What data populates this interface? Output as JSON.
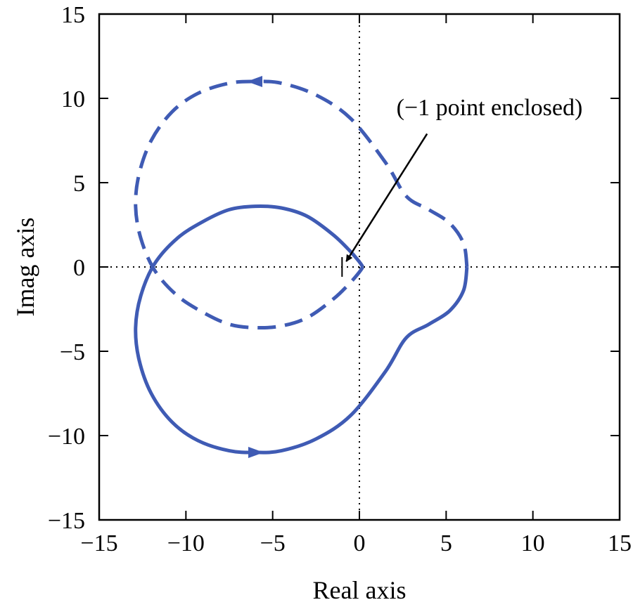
{
  "chart_data": {
    "type": "line",
    "title": "",
    "xlabel": "Real axis",
    "ylabel": "Imag axis",
    "xlim": [
      -15,
      15
    ],
    "ylim": [
      -15,
      15
    ],
    "x_ticks": [
      -15,
      -10,
      -5,
      0,
      5,
      10,
      15
    ],
    "y_ticks": [
      -15,
      -10,
      -5,
      0,
      5,
      10,
      15
    ],
    "x_tick_labels": [
      "−15",
      "−10",
      "−5",
      "0",
      "5",
      "10",
      "15"
    ],
    "y_tick_labels": [
      "−15",
      "−10",
      "−5",
      "0",
      "5",
      "10",
      "15"
    ],
    "grid": false,
    "zero_lines": "dotted",
    "series_color": "#3f5bb4",
    "series": [
      {
        "style": "solid",
        "direction": "arrow at (-6, -11) pointing toward decreasing real part",
        "points": [
          [
            0.2,
            0.0
          ],
          [
            0.0,
            0.3
          ],
          [
            -0.5,
            0.9
          ],
          [
            -1.5,
            1.9
          ],
          [
            -3.0,
            3.0
          ],
          [
            -4.5,
            3.5
          ],
          [
            -6.0,
            3.6
          ],
          [
            -7.5,
            3.4
          ],
          [
            -9.0,
            2.7
          ],
          [
            -10.5,
            1.7
          ],
          [
            -11.8,
            0.2
          ],
          [
            -12.6,
            -1.7
          ],
          [
            -12.9,
            -3.6
          ],
          [
            -12.7,
            -5.5
          ],
          [
            -12.0,
            -7.5
          ],
          [
            -10.8,
            -9.2
          ],
          [
            -9.3,
            -10.3
          ],
          [
            -7.5,
            -10.9
          ],
          [
            -6.0,
            -11.0
          ],
          [
            -4.5,
            -10.9
          ],
          [
            -2.5,
            -10.2
          ],
          [
            -0.5,
            -8.8
          ],
          [
            1.5,
            -6.2
          ],
          [
            2.7,
            -4.2
          ],
          [
            4.0,
            -3.4
          ],
          [
            5.2,
            -2.6
          ],
          [
            6.0,
            -1.4
          ],
          [
            6.2,
            0.0
          ]
        ]
      },
      {
        "style": "dashed",
        "direction": "arrow at (-6, 11) pointing toward increasing real part",
        "points": [
          [
            6.2,
            0.0
          ],
          [
            6.0,
            1.4
          ],
          [
            5.2,
            2.6
          ],
          [
            4.0,
            3.4
          ],
          [
            2.7,
            4.2
          ],
          [
            1.5,
            6.2
          ],
          [
            -0.5,
            8.8
          ],
          [
            -2.5,
            10.2
          ],
          [
            -4.5,
            10.9
          ],
          [
            -6.0,
            11.0
          ],
          [
            -7.5,
            10.9
          ],
          [
            -9.3,
            10.3
          ],
          [
            -10.8,
            9.2
          ],
          [
            -12.0,
            7.5
          ],
          [
            -12.7,
            5.5
          ],
          [
            -12.9,
            3.6
          ],
          [
            -12.6,
            1.7
          ],
          [
            -11.8,
            -0.2
          ],
          [
            -10.5,
            -1.7
          ],
          [
            -9.0,
            -2.7
          ],
          [
            -7.5,
            -3.4
          ],
          [
            -6.0,
            -3.6
          ],
          [
            -4.5,
            -3.5
          ],
          [
            -3.0,
            -3.0
          ],
          [
            -1.5,
            -1.9
          ],
          [
            -0.5,
            -0.9
          ],
          [
            0.0,
            -0.3
          ],
          [
            0.2,
            0.0
          ]
        ]
      }
    ],
    "critical_point": [
      -1,
      0
    ],
    "annotations": [
      {
        "text": "(−1 point enclosed)",
        "text_anchor": [
          0.5,
          9.0
        ],
        "arrow_from": [
          3.9,
          7.9
        ],
        "arrow_to": [
          -1.0,
          0.0
        ]
      }
    ]
  }
}
